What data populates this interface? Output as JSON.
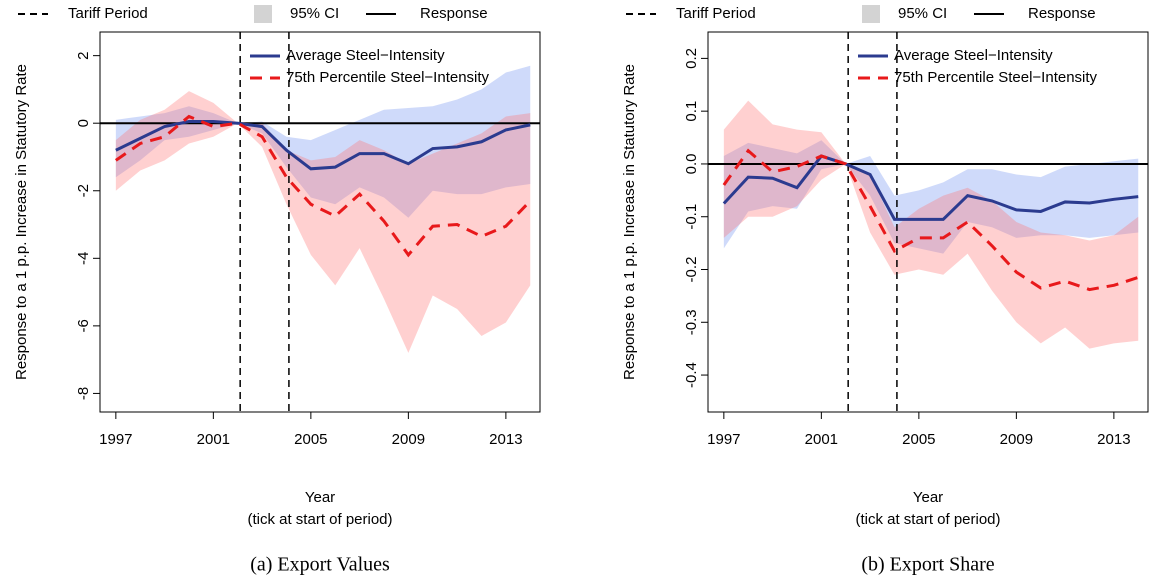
{
  "chart_data": [
    {
      "type": "line",
      "title": "(a) Export Values",
      "xlabel": "Year",
      "xlabel_note": "(tick at start of period)",
      "ylabel": "Response to a 1 p.p. Increase in Statutory Rate",
      "legend": [
        {
          "label": "Tariff Period",
          "style": "dashed",
          "color": "#000000"
        },
        {
          "label": "95% CI",
          "style": "box",
          "color": "#d3d3d3"
        },
        {
          "label": "Response",
          "style": "solid",
          "color": "#000000"
        }
      ],
      "x": [
        1997,
        1998,
        1999,
        2000,
        2001,
        2002,
        2003,
        2004,
        2005,
        2006,
        2007,
        2008,
        2009,
        2010,
        2011,
        2012,
        2013,
        2014
      ],
      "xlim": [
        1996.35,
        2014.4
      ],
      "xticks": [
        1997,
        2001,
        2005,
        2009,
        2013
      ],
      "ylim": [
        -8.55,
        2.7
      ],
      "yticks": [
        2,
        0,
        -2,
        -4,
        -6,
        -8
      ],
      "tariff_period": [
        2002.1,
        2004.1
      ],
      "hline": 0,
      "series": [
        {
          "name": "Average Steel−Intensity",
          "color": "#2b3b8f",
          "band_color": "#6d8ff0",
          "line_style": "solid",
          "values": [
            -0.8,
            -0.45,
            -0.1,
            0.05,
            0.05,
            0,
            -0.1,
            -0.8,
            -1.35,
            -1.3,
            -0.9,
            -0.9,
            -1.2,
            -0.75,
            -0.7,
            -0.55,
            -0.2,
            -0.05
          ],
          "ci_lower": [
            -1.6,
            -1.1,
            -0.5,
            -0.4,
            -0.2,
            0,
            -0.3,
            -1.3,
            -2.2,
            -2.4,
            -1.9,
            -2.2,
            -2.8,
            -2.0,
            -2.1,
            -2.1,
            -1.9,
            -1.8
          ],
          "ci_upper": [
            0.1,
            0.2,
            0.3,
            0.5,
            0.3,
            0,
            0.05,
            -0.4,
            -0.5,
            -0.2,
            0.1,
            0.4,
            0.45,
            0.5,
            0.7,
            1.0,
            1.5,
            1.7
          ]
        },
        {
          "name": "75th Percentile Steel−Intensity",
          "color": "#e8191b",
          "band_color": "#ff7070",
          "line_style": "dashed",
          "values": [
            -1.1,
            -0.6,
            -0.4,
            0.2,
            -0.1,
            0,
            -0.4,
            -1.6,
            -2.4,
            -2.75,
            -2.1,
            -2.9,
            -3.9,
            -3.05,
            -3.0,
            -3.35,
            -3.05,
            -2.3
          ],
          "ci_lower": [
            -2.0,
            -1.4,
            -1.1,
            -0.6,
            -0.4,
            0,
            -0.7,
            -2.4,
            -3.9,
            -4.8,
            -3.7,
            -5.2,
            -6.8,
            -5.1,
            -5.5,
            -6.3,
            -5.9,
            -4.8
          ],
          "ci_upper": [
            -0.5,
            0.1,
            0.4,
            0.95,
            0.6,
            0,
            0,
            -0.8,
            -1.1,
            -1.0,
            -0.5,
            -0.8,
            -1.2,
            -0.9,
            -0.6,
            -0.3,
            0.2,
            0.3
          ]
        }
      ]
    },
    {
      "type": "line",
      "title": "(b) Export Share",
      "xlabel": "Year",
      "xlabel_note": "(tick at start of period)",
      "ylabel": "Response to a 1 p.p. Increase in Statutory Rate",
      "legend": [
        {
          "label": "Tariff Period",
          "style": "dashed",
          "color": "#000000"
        },
        {
          "label": "95% CI",
          "style": "box",
          "color": "#d3d3d3"
        },
        {
          "label": "Response",
          "style": "solid",
          "color": "#000000"
        }
      ],
      "x": [
        1997,
        1998,
        1999,
        2000,
        2001,
        2002,
        2003,
        2004,
        2005,
        2006,
        2007,
        2008,
        2009,
        2010,
        2011,
        2012,
        2013,
        2014
      ],
      "xlim": [
        1996.35,
        2014.4
      ],
      "xticks": [
        1997,
        2001,
        2005,
        2009,
        2013
      ],
      "ylim": [
        -0.47,
        0.25
      ],
      "yticks": [
        0.2,
        0.1,
        {
          "value": 0,
          "label": "0.0"
        },
        -0.1,
        -0.2,
        -0.3,
        -0.4
      ],
      "tariff_period": [
        2002.1,
        2004.1
      ],
      "hline": 0,
      "series": [
        {
          "name": "Average Steel−Intensity",
          "color": "#2b3b8f",
          "band_color": "#6d8ff0",
          "line_style": "solid",
          "values": [
            -0.075,
            -0.025,
            -0.027,
            -0.045,
            0.015,
            0,
            -0.02,
            -0.105,
            -0.105,
            -0.105,
            -0.06,
            -0.07,
            -0.087,
            -0.09,
            -0.072,
            -0.074,
            -0.067,
            -0.062
          ],
          "ci_lower": [
            -0.16,
            -0.09,
            -0.08,
            -0.085,
            -0.01,
            0,
            -0.06,
            -0.15,
            -0.16,
            -0.17,
            -0.11,
            -0.12,
            -0.14,
            -0.135,
            -0.135,
            -0.14,
            -0.135,
            -0.13
          ],
          "ci_upper": [
            0.015,
            0.04,
            0.03,
            0.02,
            0.045,
            0,
            0.015,
            -0.06,
            -0.05,
            -0.035,
            -0.01,
            -0.01,
            -0.02,
            -0.025,
            -0.005,
            0.0,
            0.005,
            0.01
          ]
        },
        {
          "name": "75th Percentile Steel−Intensity",
          "color": "#e8191b",
          "band_color": "#ff7070",
          "line_style": "dashed",
          "values": [
            -0.04,
            0.025,
            -0.015,
            -0.005,
            0.015,
            0,
            -0.08,
            -0.165,
            -0.14,
            -0.14,
            -0.11,
            -0.155,
            -0.205,
            -0.235,
            -0.222,
            -0.238,
            -0.23,
            -0.215
          ],
          "ci_lower": [
            -0.14,
            -0.1,
            -0.1,
            -0.08,
            -0.03,
            0,
            -0.13,
            -0.21,
            -0.2,
            -0.21,
            -0.17,
            -0.24,
            -0.3,
            -0.34,
            -0.31,
            -0.35,
            -0.34,
            -0.335
          ],
          "ci_upper": [
            0.065,
            0.12,
            0.075,
            0.065,
            0.06,
            0,
            -0.02,
            -0.12,
            -0.085,
            -0.06,
            -0.045,
            -0.07,
            -0.11,
            -0.13,
            -0.135,
            -0.145,
            -0.135,
            -0.1
          ]
        }
      ]
    }
  ]
}
